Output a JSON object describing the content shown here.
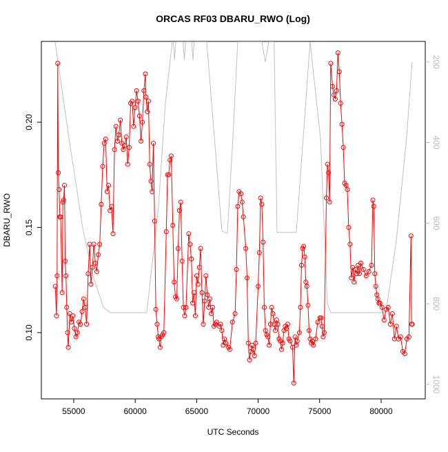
{
  "chart_data": {
    "type": "line",
    "title": "ORCAS RF03 DBARU_RWO (Log)",
    "x_label": "UTC Seconds",
    "y_label": "DBARU_RWO",
    "xlim": [
      52370,
      83590
    ],
    "xticks": [
      55000,
      60000,
      65000,
      70000,
      75000,
      80000
    ],
    "ylim": [
      0.0685,
      0.2384
    ],
    "yticks": [
      {
        "value": 0.1,
        "label": "0.10"
      },
      0.15,
      {
        "value": 0.2,
        "label": "0.20"
      }
    ],
    "y2lim": [
      1036,
      149
    ],
    "y2ticks": [
      200,
      400,
      600,
      800,
      1000
    ],
    "series": [
      {
        "color": "#ff0000",
        "x": [
          53500,
          53600,
          53650,
          53700,
          53750,
          53812,
          53874,
          53937,
          54061,
          54123,
          54185,
          54248,
          54310,
          54372,
          54434,
          54496,
          54559,
          54683,
          54807,
          54932,
          55056,
          55181,
          55305,
          55429,
          55554,
          55678,
          55803,
          55927,
          56051,
          56176,
          56300,
          56400,
          56520,
          56639,
          56759,
          56879,
          56999,
          57118,
          57238,
          57358,
          57477,
          57597,
          57717,
          57836,
          57956,
          58076,
          58196,
          58315,
          58435,
          58555,
          58674,
          58794,
          58914,
          59033,
          59153,
          59273,
          59393,
          59512,
          59632,
          59752,
          59871,
          59991,
          60111,
          60230,
          60350,
          60470,
          60590,
          60709,
          60829,
          60880,
          60980,
          61080,
          61180,
          61280,
          61380,
          61480,
          61580,
          61680,
          61780,
          61880,
          61930,
          62030,
          62130,
          62230,
          62330,
          62530,
          62630,
          62730,
          62830,
          62930,
          63060,
          63168,
          63276,
          63383,
          63491,
          63599,
          63707,
          63815,
          63922,
          64030,
          64138,
          64354,
          64461,
          64569,
          64677,
          64785,
          64893,
          65000,
          65108,
          65216,
          65324,
          65432,
          65539,
          65647,
          65755,
          65863,
          65971,
          66078,
          66186,
          66294,
          66402,
          66510,
          66617,
          66833,
          66941,
          67049,
          67156,
          67264,
          67372,
          67588,
          67695,
          67911,
          68127,
          68234,
          68342,
          68450,
          68600,
          68700,
          68800,
          69000,
          69100,
          69200,
          69300,
          69400,
          69500,
          69600,
          69700,
          69800,
          70000,
          70100,
          70200,
          70300,
          70400,
          70500,
          70600,
          70700,
          70800,
          70900,
          71000,
          71100,
          71200,
          71300,
          71400,
          71500,
          71600,
          71700,
          71800,
          71900,
          72000,
          72100,
          72200,
          72300,
          72400,
          72500,
          72600,
          72800,
          72900,
          73000,
          73088,
          73176,
          73352,
          73440,
          73528,
          73616,
          73703,
          73791,
          73879,
          73967,
          74055,
          74143,
          74231,
          74319,
          74407,
          74495,
          74671,
          74847,
          75022,
          75110,
          75198,
          75286,
          75374,
          75550,
          75638,
          75726,
          75814,
          75900,
          76050,
          76159,
          76269,
          76378,
          76487,
          76597,
          76706,
          76815,
          76925,
          77034,
          77143,
          77252,
          77362,
          77471,
          77580,
          77690,
          77799,
          77908,
          78018,
          78127,
          78236,
          78346,
          78564,
          78783,
          79001,
          79220,
          79330,
          79400,
          79484,
          79568,
          79653,
          79737,
          79821,
          79905,
          80074,
          80242,
          80411,
          80579,
          80747,
          80916,
          81084,
          81253,
          81421,
          81589,
          81758,
          81926,
          82095,
          82263,
          82432,
          82480,
          82520
        ],
        "values": [
          0.122,
          0.108,
          0.127,
          0.228,
          0.176,
          0.168,
          0.155,
          0.155,
          0.119,
          0.162,
          0.163,
          0.17,
          0.134,
          0.127,
          0.112,
          0.1,
          0.093,
          0.109,
          0.105,
          0.108,
          0.102,
          0.098,
          0.1,
          0.105,
          0.104,
          0.11,
          0.116,
          0.112,
          0.104,
          0.128,
          0.142,
          0.123,
          0.131,
          0.142,
          0.133,
          0.129,
          0.137,
          0.142,
          0.161,
          0.179,
          0.19,
          0.192,
          0.167,
          0.17,
          0.158,
          0.16,
          0.147,
          0.187,
          0.198,
          0.191,
          0.194,
          0.201,
          0.19,
          0.187,
          0.189,
          0.193,
          0.18,
          0.188,
          0.209,
          0.21,
          0.198,
          0.207,
          0.215,
          0.21,
          0.203,
          0.191,
          0.2,
          0.215,
          0.223,
          0.212,
          0.205,
          0.21,
          0.18,
          0.172,
          0.167,
          0.19,
          0.153,
          0.111,
          0.104,
          0.098,
          0.097,
          0.093,
          0.098,
          0.099,
          0.1,
          0.148,
          0.175,
          0.175,
          0.182,
          0.184,
          0.151,
          0.124,
          0.117,
          0.116,
          0.14,
          0.158,
          0.162,
          0.134,
          0.112,
          0.108,
          0.112,
          0.147,
          0.142,
          0.135,
          0.114,
          0.119,
          0.108,
          0.127,
          0.123,
          0.131,
          0.14,
          0.119,
          0.104,
          0.115,
          0.127,
          0.118,
          0.112,
          0.116,
          0.109,
          0.112,
          0.103,
          0.104,
          0.105,
          0.103,
          0.104,
          0.101,
          0.094,
          0.097,
          0.095,
          0.093,
          0.092,
          0.105,
          0.109,
          0.13,
          0.16,
          0.167,
          0.166,
          0.162,
          0.155,
          0.14,
          0.126,
          0.095,
          0.087,
          0.091,
          0.094,
          0.092,
          0.089,
          0.095,
          0.122,
          0.138,
          0.164,
          0.161,
          0.143,
          0.112,
          0.101,
          0.099,
          0.098,
          0.094,
          0.104,
          0.112,
          0.109,
          0.104,
          0.101,
          0.106,
          0.104,
          0.097,
          0.096,
          0.092,
          0.095,
          0.101,
          0.103,
          0.102,
          0.104,
          0.097,
          0.096,
          0.093,
          0.076,
          0.098,
          0.094,
          0.096,
          0.1,
          0.112,
          0.132,
          0.14,
          0.141,
          0.136,
          0.124,
          0.122,
          0.113,
          0.101,
          0.097,
          0.095,
          0.096,
          0.094,
          0.097,
          0.105,
          0.107,
          0.107,
          0.103,
          0.098,
          0.1,
          0.164,
          0.18,
          0.176,
          0.162,
          0.228,
          0.217,
          0.213,
          0.211,
          0.215,
          0.233,
          0.224,
          0.209,
          0.199,
          0.188,
          0.171,
          0.17,
          0.168,
          0.15,
          0.142,
          0.126,
          0.131,
          0.124,
          0.13,
          0.128,
          0.132,
          0.128,
          0.133,
          0.13,
          0.127,
          0.129,
          0.132,
          0.163,
          0.16,
          0.128,
          0.122,
          0.118,
          0.116,
          0.114,
          0.114,
          0.112,
          0.106,
          0.111,
          0.112,
          0.104,
          0.109,
          0.097,
          0.103,
          0.097,
          0.098,
          0.091,
          0.09,
          0.097,
          0.098,
          0.146,
          0.104,
          0.104
        ]
      },
      {
        "color": "#c0c0c0",
        "axis": "y2",
        "x": [
          53487,
          54608,
          55729,
          56569,
          57410,
          57971,
          60941,
          61894,
          62455,
          63015,
          63100,
          63200,
          63300,
          63900,
          64000,
          64100,
          64600,
          64700,
          64800,
          65817,
          67051,
          67499,
          67947,
          68340,
          70302,
          70582,
          70862,
          71300,
          71535,
          73104,
          73665,
          74225,
          75066,
          75626,
          75907,
          80391,
          81232,
          82073,
          82521
        ],
        "values": [
          150,
          388,
          611,
          731,
          808,
          822,
          822,
          560,
          303,
          150,
          150,
          195,
          150,
          150,
          195,
          150,
          150,
          195,
          150,
          150,
          620,
          625,
          388,
          150,
          150,
          200,
          150,
          150,
          623,
          623,
          388,
          150,
          388,
          799,
          822,
          822,
          645,
          388,
          200
        ]
      }
    ]
  }
}
